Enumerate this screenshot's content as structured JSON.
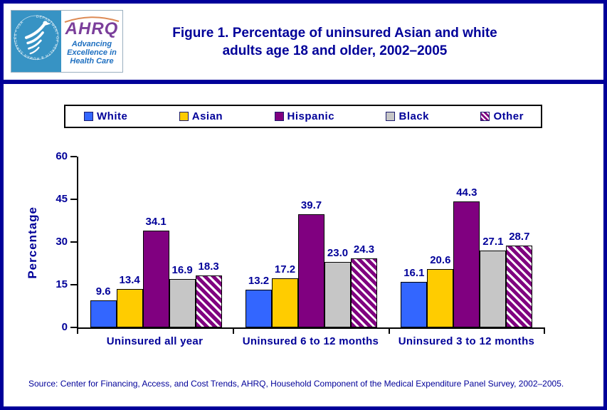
{
  "header": {
    "logo": {
      "seal_text": "DEPARTMENT OF HEALTH & HUMAN SERVICES • USA",
      "org_name": "AHRQ",
      "tagline": "Advancing Excellence in Health Care"
    },
    "title_line1": "Figure 1. Percentage of uninsured Asian and white",
    "title_line2": "adults age 18 and older, 2002–2005"
  },
  "chart_data": {
    "type": "bar",
    "title": "Figure 1. Percentage of uninsured Asian and white adults age 18 and older, 2002–2005",
    "xlabel": "",
    "ylabel": "Percentage",
    "ylim": [
      0,
      60
    ],
    "y_ticks": [
      0,
      15,
      30,
      45,
      60
    ],
    "grid": false,
    "legend_position": "top",
    "categories": [
      "Uninsured all year",
      "Uninsured 6 to 12 months",
      "Uninsured 3 to 12 months"
    ],
    "series": [
      {
        "name": "White",
        "color": "#3366FF",
        "pattern": "solid",
        "values": [
          9.6,
          13.2,
          16.1
        ]
      },
      {
        "name": "Asian",
        "color": "#FFCC00",
        "pattern": "solid",
        "values": [
          13.4,
          17.2,
          20.6
        ]
      },
      {
        "name": "Hispanic",
        "color": "#800080",
        "pattern": "solid",
        "values": [
          34.1,
          39.7,
          44.3
        ]
      },
      {
        "name": "Black",
        "color": "#C6C6C6",
        "pattern": "solid",
        "values": [
          16.9,
          23.0,
          27.1
        ]
      },
      {
        "name": "Other",
        "color": "#800080",
        "pattern": "diagonal-stripes",
        "values": [
          18.3,
          24.3,
          28.7
        ]
      }
    ]
  },
  "source": "Source: Center for Financing, Access, and Cost Trends, AHRQ, Household Component of the Medical Expenditure Panel Survey, 2002–2005.",
  "colors": {
    "accent_navy": "#000099",
    "axis_black": "#000000",
    "seal_teal": "#3793C4",
    "ahrq_purple": "#7B3F9B",
    "tagline_blue": "#1D6FC0"
  }
}
